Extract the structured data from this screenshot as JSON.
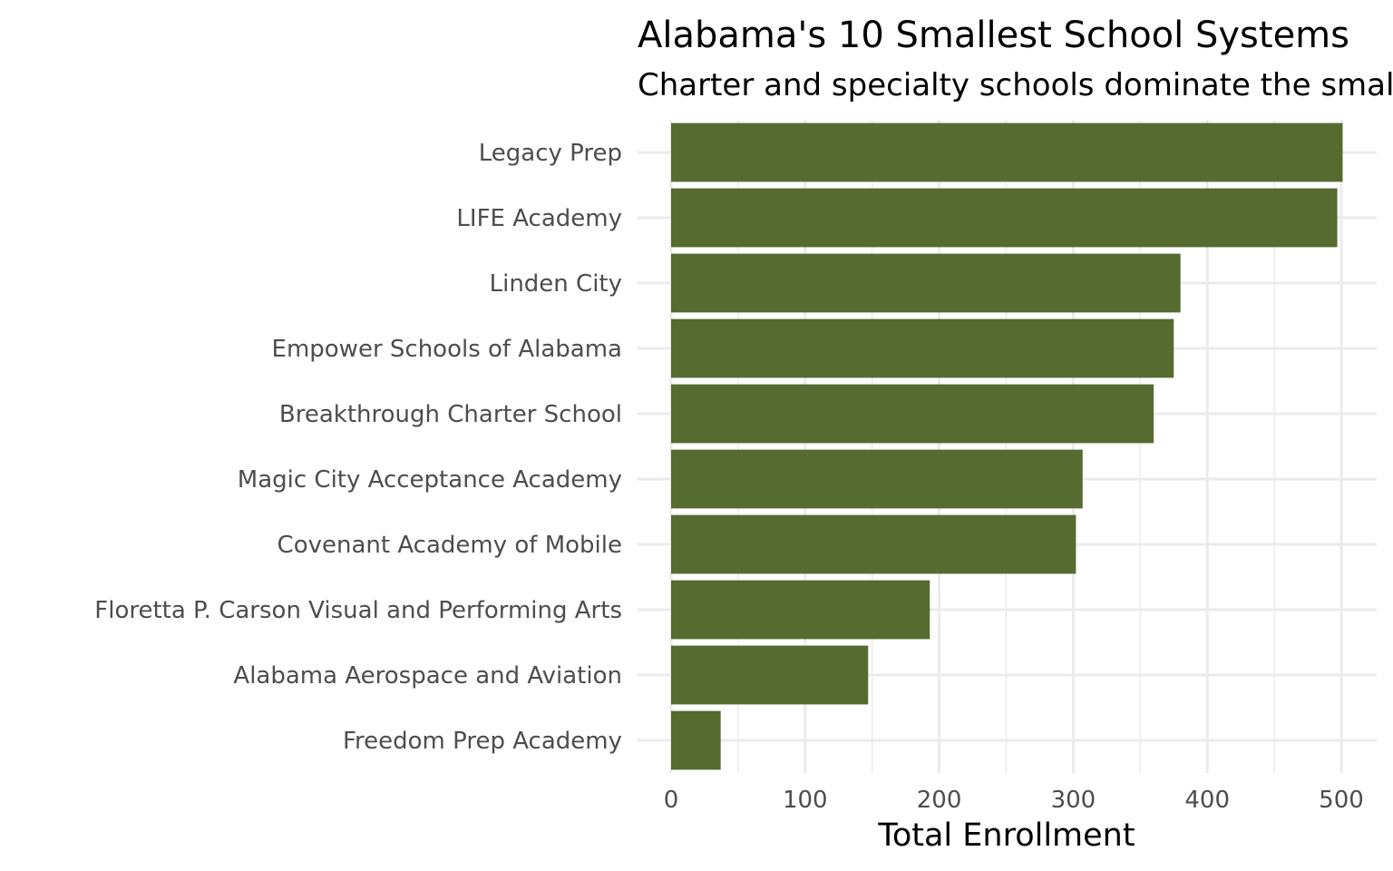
{
  "chart_data": {
    "type": "bar",
    "orientation": "horizontal",
    "title": "Alabama's 10 Smallest School Systems",
    "subtitle": "Charter and specialty schools dominate the smallest systems",
    "xlabel": "Total Enrollment",
    "ylabel": "",
    "xlim": [
      0,
      525
    ],
    "x_ticks": [
      0,
      100,
      200,
      300,
      400,
      500
    ],
    "grid": true,
    "bar_color": "#556b2f",
    "categories": [
      "Legacy Prep",
      "LIFE Academy",
      "Linden City",
      "Empower Schools of Alabama",
      "Breakthrough Charter School",
      "Magic City Acceptance Academy",
      "Covenant Academy of Mobile",
      "Floretta P. Carson Visual and Performing Arts",
      "Alabama Aerospace and Aviation",
      "Freedom Prep Academy"
    ],
    "values": [
      501,
      497,
      380,
      375,
      360,
      307,
      302,
      193,
      147,
      37
    ]
  }
}
